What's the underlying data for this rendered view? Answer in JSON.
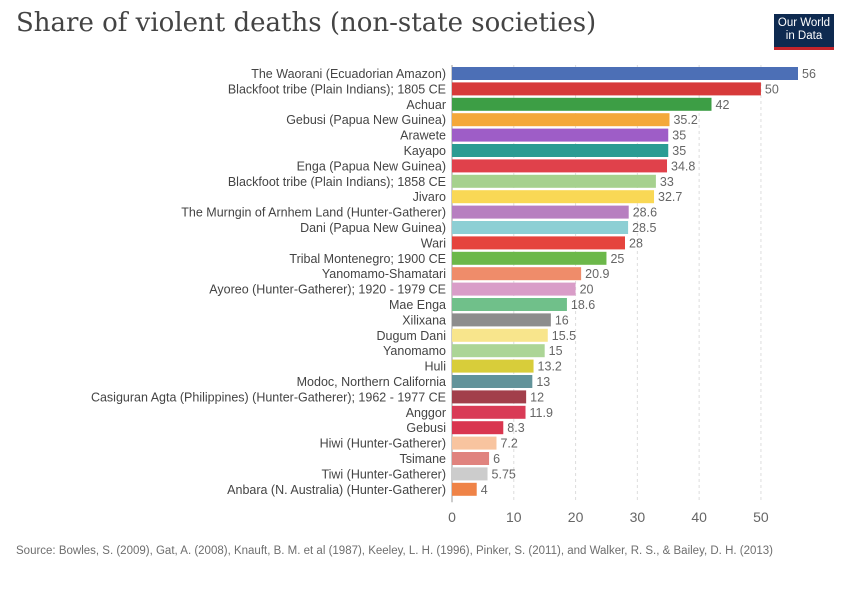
{
  "header": {
    "title": "Share of violent deaths (non-state societies)",
    "logo_line1": "Our World",
    "logo_line2": "in Data"
  },
  "footer": {
    "source": "Source: Bowles, S. (2009), Gat, A. (2008), Knauft, B. M. et al (1987), Keeley, L. H. (1996), Pinker, S. (2011), and Walker, R. S., & Bailey, D. H. (2013)"
  },
  "chart_data": {
    "type": "bar",
    "orientation": "horizontal",
    "title": "Share of violent deaths (non-state societies)",
    "xlabel": "",
    "ylabel": "",
    "xlim": [
      0,
      56
    ],
    "ticks": [
      0,
      10,
      20,
      30,
      40,
      50
    ],
    "grid": true,
    "categories": [
      "The Waorani (Ecuadorian Amazon)",
      "Blackfoot tribe (Plain Indians); 1805 CE",
      "Achuar",
      "Gebusi (Papua New Guinea)",
      "Arawete",
      "Kayapo",
      "Enga (Papua New Guinea)",
      "Blackfoot tribe (Plain Indians); 1858 CE",
      "Jivaro",
      "The Murngin of Arnhem Land (Hunter-Gatherer)",
      "Dani (Papua New Guinea)",
      "Wari",
      "Tribal Montenegro; 1900 CE",
      "Yanomamo-Shamatari",
      "Ayoreo (Hunter-Gatherer); 1920 - 1979 CE",
      "Mae Enga",
      "Xilixana",
      "Dugum Dani",
      "Yanomamo",
      "Huli",
      "Modoc, Northern California",
      "Casiguran Agta (Philippines) (Hunter-Gatherer); 1962 - 1977 CE",
      "Anggor",
      "Gebusi",
      "Hiwi (Hunter-Gatherer)",
      "Tsimane",
      "Tiwi (Hunter-Gatherer)",
      "Anbara (N. Australia) (Hunter-Gatherer)"
    ],
    "values": [
      56,
      50,
      42,
      35.2,
      35,
      35,
      34.8,
      33,
      32.7,
      28.6,
      28.5,
      28,
      25,
      20.9,
      20,
      18.6,
      16,
      15.5,
      15,
      13.2,
      13,
      12,
      11.9,
      8.3,
      7.2,
      6,
      5.75,
      4
    ],
    "value_labels": [
      "56",
      "50",
      "42",
      "35.2",
      "35",
      "35",
      "34.8",
      "33",
      "32.7",
      "28.6",
      "28.5",
      "28",
      "25",
      "20.9",
      "20",
      "18.6",
      "16",
      "15.5",
      "15",
      "13.2",
      "13",
      "12",
      "11.9",
      "8.3",
      "7.2",
      "6",
      "5.75",
      "4"
    ],
    "colors": [
      "#4c6fb6",
      "#d73a3a",
      "#3d9e45",
      "#f4a83a",
      "#9e5dc7",
      "#2b9c93",
      "#e0414b",
      "#a6d18e",
      "#f9d855",
      "#b77fc0",
      "#8dcfd4",
      "#e5443d",
      "#6cb84a",
      "#ef8c6a",
      "#d99dc8",
      "#70c08a",
      "#8d8d8d",
      "#f8e58c",
      "#acd596",
      "#d8cd3a",
      "#62939a",
      "#a23f4b",
      "#d93b56",
      "#d9364f",
      "#f8c49f",
      "#e0837e",
      "#cccccc",
      "#ef8347"
    ]
  }
}
